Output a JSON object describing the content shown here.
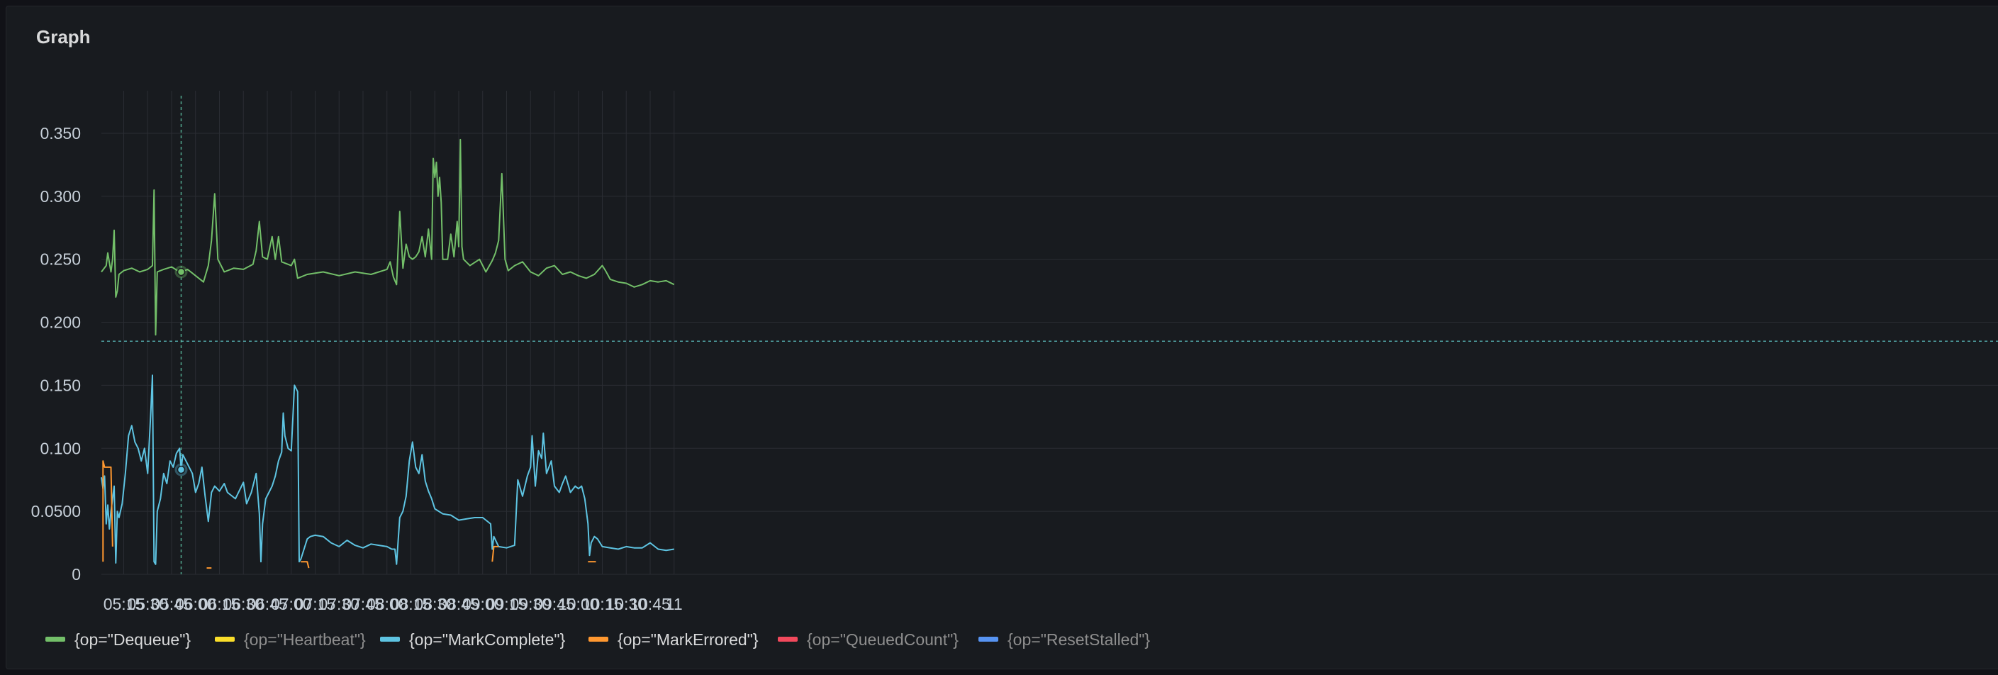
{
  "panel": {
    "title": "Graph"
  },
  "chart_data": {
    "type": "line",
    "title": "Graph",
    "grid": true,
    "legend_position": "bottom",
    "x_range": [
      "05:01",
      "11:00"
    ],
    "x_ticks": [
      "05:15",
      "05:30",
      "05:45",
      "06:00",
      "06:15",
      "06:30",
      "06:45",
      "07:00",
      "07:15",
      "07:30",
      "07:45",
      "08:00",
      "08:15",
      "08:30",
      "08:45",
      "09:00",
      "09:15",
      "09:30",
      "09:45",
      "10:00",
      "10:15",
      "10:30",
      "10:45",
      "11:00"
    ],
    "x_ticks_display": [
      "05:15",
      "05:30",
      "05:45",
      "06:00",
      "06:15",
      "06:30",
      "06:45",
      "07:00",
      "07:15",
      "07:30",
      "07:45",
      "08:00",
      "08:15",
      "08:30",
      "08:45",
      "09:00",
      "09:15",
      "09:30",
      "09:45",
      "10:00",
      "10:15",
      "10:30",
      "10:45",
      "11"
    ],
    "y_ticks": [
      0,
      0.05,
      0.1,
      0.15,
      0.2,
      0.25,
      0.3,
      0.35
    ],
    "y_ticks_display": [
      "0",
      "0.0500",
      "0.100",
      "0.150",
      "0.200",
      "0.250",
      "0.300",
      "0.350"
    ],
    "ylim": [
      0,
      0.35
    ],
    "threshold": 0.185,
    "crosshair_time": "05:51",
    "series": [
      {
        "name": "{op=\"Dequeue\"}",
        "color": "#73bf69",
        "legend_text_color": "#d8d9da",
        "points": [
          [
            "05:01",
            0.24
          ],
          [
            "05:04",
            0.245
          ],
          [
            "05:05",
            0.255
          ],
          [
            "05:07",
            0.24
          ],
          [
            "05:08",
            0.25
          ],
          [
            "05:09",
            0.273
          ],
          [
            "05:10",
            0.22
          ],
          [
            "05:11",
            0.225
          ],
          [
            "05:12",
            0.238
          ],
          [
            "05:15",
            0.241
          ],
          [
            "05:20",
            0.243
          ],
          [
            "05:25",
            0.24
          ],
          [
            "05:30",
            0.242
          ],
          [
            "05:33",
            0.245
          ],
          [
            "05:34",
            0.305
          ],
          [
            "05:35",
            0.19
          ],
          [
            "05:36",
            0.24
          ],
          [
            "05:40",
            0.242
          ],
          [
            "05:45",
            0.244
          ],
          [
            "05:50",
            0.24
          ],
          [
            "05:51",
            0.24
          ],
          [
            "05:55",
            0.242
          ],
          [
            "06:00",
            0.237
          ],
          [
            "06:05",
            0.232
          ],
          [
            "06:08",
            0.245
          ],
          [
            "06:10",
            0.265
          ],
          [
            "06:12",
            0.302
          ],
          [
            "06:14",
            0.25
          ],
          [
            "06:18",
            0.24
          ],
          [
            "06:24",
            0.243
          ],
          [
            "06:30",
            0.242
          ],
          [
            "06:36",
            0.246
          ],
          [
            "06:38",
            0.257
          ],
          [
            "06:40",
            0.28
          ],
          [
            "06:42",
            0.252
          ],
          [
            "06:45",
            0.25
          ],
          [
            "06:48",
            0.268
          ],
          [
            "06:50",
            0.25
          ],
          [
            "06:52",
            0.268
          ],
          [
            "06:54",
            0.248
          ],
          [
            "07:00",
            0.245
          ],
          [
            "07:02",
            0.25
          ],
          [
            "07:04",
            0.235
          ],
          [
            "07:10",
            0.238
          ],
          [
            "07:20",
            0.24
          ],
          [
            "07:30",
            0.237
          ],
          [
            "07:40",
            0.24
          ],
          [
            "07:50",
            0.238
          ],
          [
            "08:00",
            0.242
          ],
          [
            "08:02",
            0.248
          ],
          [
            "08:04",
            0.236
          ],
          [
            "08:06",
            0.23
          ],
          [
            "08:08",
            0.288
          ],
          [
            "08:10",
            0.243
          ],
          [
            "08:12",
            0.262
          ],
          [
            "08:14",
            0.252
          ],
          [
            "08:16",
            0.25
          ],
          [
            "08:18",
            0.252
          ],
          [
            "08:20",
            0.256
          ],
          [
            "08:22",
            0.268
          ],
          [
            "08:24",
            0.252
          ],
          [
            "08:26",
            0.274
          ],
          [
            "08:28",
            0.25
          ],
          [
            "08:29",
            0.33
          ],
          [
            "08:30",
            0.315
          ],
          [
            "08:31",
            0.327
          ],
          [
            "08:32",
            0.3
          ],
          [
            "08:33",
            0.315
          ],
          [
            "08:34",
            0.295
          ],
          [
            "08:35",
            0.25
          ],
          [
            "08:38",
            0.25
          ],
          [
            "08:40",
            0.27
          ],
          [
            "08:42",
            0.252
          ],
          [
            "08:44",
            0.28
          ],
          [
            "08:45",
            0.26
          ],
          [
            "08:46",
            0.345
          ],
          [
            "08:47",
            0.26
          ],
          [
            "08:48",
            0.25
          ],
          [
            "08:52",
            0.245
          ],
          [
            "08:58",
            0.25
          ],
          [
            "09:02",
            0.24
          ],
          [
            "09:06",
            0.249
          ],
          [
            "09:08",
            0.255
          ],
          [
            "09:10",
            0.265
          ],
          [
            "09:12",
            0.318
          ],
          [
            "09:14",
            0.25
          ],
          [
            "09:16",
            0.241
          ],
          [
            "09:20",
            0.245
          ],
          [
            "09:25",
            0.248
          ],
          [
            "09:30",
            0.24
          ],
          [
            "09:35",
            0.237
          ],
          [
            "09:40",
            0.243
          ],
          [
            "09:45",
            0.245
          ],
          [
            "09:50",
            0.238
          ],
          [
            "09:55",
            0.24
          ],
          [
            "10:00",
            0.237
          ],
          [
            "10:05",
            0.235
          ],
          [
            "10:10",
            0.238
          ],
          [
            "10:15",
            0.245
          ],
          [
            "10:17",
            0.241
          ],
          [
            "10:20",
            0.234
          ],
          [
            "10:25",
            0.232
          ],
          [
            "10:30",
            0.231
          ],
          [
            "10:35",
            0.228
          ],
          [
            "10:40",
            0.23
          ],
          [
            "10:45",
            0.233
          ],
          [
            "10:50",
            0.232
          ],
          [
            "10:55",
            0.233
          ],
          [
            "11:00",
            0.23
          ]
        ]
      },
      {
        "name": "{op=\"Heartbeat\"}",
        "color": "#fade2a",
        "legend_text_color": "#8e8e8e",
        "points": []
      },
      {
        "name": "{op=\"MarkComplete\"}",
        "color": "#5ec4e2",
        "legend_text_color": "#d8d9da",
        "points": [
          [
            "05:01",
            0.077
          ],
          [
            "05:02",
            0.068
          ],
          [
            "05:03",
            0.078
          ],
          [
            "05:04",
            0.04
          ],
          [
            "05:05",
            0.055
          ],
          [
            "05:06",
            0.036
          ],
          [
            "05:07",
            0.05
          ],
          [
            "05:08",
            0.06
          ],
          [
            "05:09",
            0.07
          ],
          [
            "05:10",
            0.009
          ],
          [
            "05:11",
            0.05
          ],
          [
            "05:12",
            0.045
          ],
          [
            "05:14",
            0.056
          ],
          [
            "05:16",
            0.08
          ],
          [
            "05:18",
            0.11
          ],
          [
            "05:20",
            0.118
          ],
          [
            "05:22",
            0.105
          ],
          [
            "05:24",
            0.1
          ],
          [
            "05:26",
            0.09
          ],
          [
            "05:28",
            0.1
          ],
          [
            "05:30",
            0.08
          ],
          [
            "05:32",
            0.13
          ],
          [
            "05:33",
            0.158
          ],
          [
            "05:34",
            0.01
          ],
          [
            "05:35",
            0.008
          ],
          [
            "05:36",
            0.05
          ],
          [
            "05:38",
            0.06
          ],
          [
            "05:40",
            0.08
          ],
          [
            "05:42",
            0.072
          ],
          [
            "05:44",
            0.09
          ],
          [
            "05:46",
            0.085
          ],
          [
            "05:48",
            0.096
          ],
          [
            "05:50",
            0.1
          ],
          [
            "05:51",
            0.083
          ],
          [
            "05:52",
            0.095
          ],
          [
            "05:54",
            0.09
          ],
          [
            "05:56",
            0.085
          ],
          [
            "05:58",
            0.08
          ],
          [
            "06:00",
            0.065
          ],
          [
            "06:02",
            0.072
          ],
          [
            "06:04",
            0.085
          ],
          [
            "06:06",
            0.062
          ],
          [
            "06:08",
            0.042
          ],
          [
            "06:10",
            0.065
          ],
          [
            "06:12",
            0.07
          ],
          [
            "06:15",
            0.066
          ],
          [
            "06:18",
            0.072
          ],
          [
            "06:20",
            0.065
          ],
          [
            "06:25",
            0.06
          ],
          [
            "06:30",
            0.073
          ],
          [
            "06:32",
            0.056
          ],
          [
            "06:35",
            0.065
          ],
          [
            "06:38",
            0.08
          ],
          [
            "06:40",
            0.048
          ],
          [
            "06:41",
            0.01
          ],
          [
            "06:42",
            0.04
          ],
          [
            "06:44",
            0.06
          ],
          [
            "06:46",
            0.065
          ],
          [
            "06:48",
            0.07
          ],
          [
            "06:50",
            0.078
          ],
          [
            "06:52",
            0.09
          ],
          [
            "06:54",
            0.097
          ],
          [
            "06:55",
            0.128
          ],
          [
            "06:56",
            0.11
          ],
          [
            "06:58",
            0.1
          ],
          [
            "07:00",
            0.098
          ],
          [
            "07:02",
            0.15
          ],
          [
            "07:04",
            0.145
          ],
          [
            "07:05",
            0.01
          ],
          [
            "07:06",
            0.012
          ],
          [
            "07:08",
            0.02
          ],
          [
            "07:10",
            0.028
          ],
          [
            "07:12",
            0.03
          ],
          [
            "07:15",
            0.031
          ],
          [
            "07:20",
            0.03
          ],
          [
            "07:25",
            0.025
          ],
          [
            "07:30",
            0.022
          ],
          [
            "07:35",
            0.027
          ],
          [
            "07:40",
            0.023
          ],
          [
            "07:45",
            0.021
          ],
          [
            "07:50",
            0.024
          ],
          [
            "07:55",
            0.023
          ],
          [
            "08:00",
            0.022
          ],
          [
            "08:03",
            0.02
          ],
          [
            "08:05",
            0.02
          ],
          [
            "08:06",
            0.008
          ],
          [
            "08:08",
            0.045
          ],
          [
            "08:10",
            0.05
          ],
          [
            "08:12",
            0.062
          ],
          [
            "08:14",
            0.09
          ],
          [
            "08:16",
            0.105
          ],
          [
            "08:18",
            0.085
          ],
          [
            "08:20",
            0.08
          ],
          [
            "08:22",
            0.095
          ],
          [
            "08:24",
            0.074
          ],
          [
            "08:26",
            0.066
          ],
          [
            "08:28",
            0.06
          ],
          [
            "08:30",
            0.052
          ],
          [
            "08:35",
            0.048
          ],
          [
            "08:40",
            0.047
          ],
          [
            "08:45",
            0.043
          ],
          [
            "08:50",
            0.044
          ],
          [
            "08:55",
            0.045
          ],
          [
            "09:00",
            0.045
          ],
          [
            "09:05",
            0.04
          ],
          [
            "09:06",
            0.02
          ],
          [
            "09:07",
            0.03
          ],
          [
            "09:10",
            0.022
          ],
          [
            "09:15",
            0.021
          ],
          [
            "09:20",
            0.023
          ],
          [
            "09:22",
            0.075
          ],
          [
            "09:25",
            0.062
          ],
          [
            "09:28",
            0.078
          ],
          [
            "09:30",
            0.085
          ],
          [
            "09:31",
            0.11
          ],
          [
            "09:33",
            0.07
          ],
          [
            "09:35",
            0.098
          ],
          [
            "09:37",
            0.092
          ],
          [
            "09:38",
            0.112
          ],
          [
            "09:40",
            0.08
          ],
          [
            "09:43",
            0.09
          ],
          [
            "09:45",
            0.07
          ],
          [
            "09:48",
            0.065
          ],
          [
            "09:50",
            0.072
          ],
          [
            "09:52",
            0.078
          ],
          [
            "09:55",
            0.065
          ],
          [
            "09:58",
            0.07
          ],
          [
            "10:00",
            0.068
          ],
          [
            "10:02",
            0.07
          ],
          [
            "10:04",
            0.06
          ],
          [
            "10:06",
            0.04
          ],
          [
            "10:07",
            0.015
          ],
          [
            "10:08",
            0.025
          ],
          [
            "10:10",
            0.03
          ],
          [
            "10:12",
            0.028
          ],
          [
            "10:15",
            0.022
          ],
          [
            "10:20",
            0.021
          ],
          [
            "10:25",
            0.02
          ],
          [
            "10:30",
            0.022
          ],
          [
            "10:35",
            0.021
          ],
          [
            "10:40",
            0.021
          ],
          [
            "10:45",
            0.025
          ],
          [
            "10:50",
            0.02
          ],
          [
            "10:55",
            0.019
          ],
          [
            "11:00",
            0.02
          ]
        ]
      },
      {
        "name": "{op=\"MarkErrored\"}",
        "color": "#ff9830",
        "legend_text_color": "#d8d9da",
        "segments": [
          [
            [
              "05:02",
              0.01
            ],
            [
              "05:02",
              0.09
            ],
            [
              "05:03",
              0.085
            ],
            [
              "05:04",
              0.085
            ],
            [
              "05:07",
              0.085
            ],
            [
              "05:08",
              0.022
            ]
          ],
          [
            [
              "06:07",
              0.005
            ],
            [
              "06:10",
              0.005
            ]
          ],
          [
            [
              "07:06",
              0.01
            ],
            [
              "07:10",
              0.01
            ],
            [
              "07:11",
              0.005
            ]
          ],
          [
            [
              "09:06",
              0.01
            ],
            [
              "09:07",
              0.022
            ],
            [
              "09:10",
              0.022
            ]
          ],
          [
            [
              "10:06",
              0.01
            ],
            [
              "10:11",
              0.01
            ]
          ]
        ]
      },
      {
        "name": "{op=\"QueuedCount\"}",
        "color": "#f2495c",
        "legend_text_color": "#8e8e8e",
        "points": []
      },
      {
        "name": "{op=\"ResetStalled\"}",
        "color": "#5794f2",
        "legend_text_color": "#8e8e8e",
        "points": []
      }
    ]
  }
}
